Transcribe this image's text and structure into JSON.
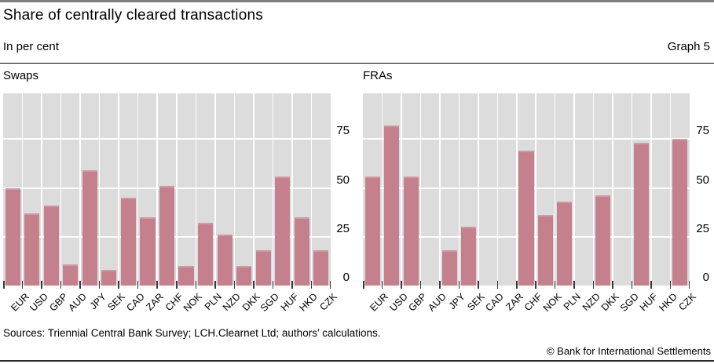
{
  "header": {
    "title": "Share of centrally cleared transactions",
    "subtitle": "In per cent",
    "graph_label": "Graph 5"
  },
  "chart_data": [
    {
      "type": "bar",
      "title": "Swaps",
      "categories": [
        "EUR",
        "USD",
        "GBP",
        "AUD",
        "JPY",
        "SEK",
        "CAD",
        "ZAR",
        "CHF",
        "NOK",
        "PLN",
        "NZD",
        "DKK",
        "SGD",
        "HUF",
        "HKD",
        "CZK"
      ],
      "values": [
        50,
        37,
        41,
        11,
        59,
        8,
        45,
        35,
        51,
        10,
        32,
        26,
        10,
        18,
        56,
        35,
        18
      ],
      "xlabel": "",
      "ylabel": "",
      "yticks": [
        0,
        25,
        50,
        75
      ],
      "ylim": [
        0,
        98
      ],
      "grid": true,
      "legend": "none",
      "bar_color": "#c5808e",
      "bar_top_color": "#cf99a4",
      "plot_bg": "#dcdcdc",
      "grid_color": "#ffffff"
    },
    {
      "type": "bar",
      "title": "FRAs",
      "categories": [
        "EUR",
        "USD",
        "GBP",
        "AUD",
        "JPY",
        "SEK",
        "CAD",
        "ZAR",
        "CHF",
        "NOK",
        "PLN",
        "NZD",
        "DKK",
        "SGD",
        "HUF",
        "HKD",
        "CZK"
      ],
      "values": [
        56,
        82,
        56,
        null,
        18,
        30,
        null,
        null,
        69,
        36,
        43,
        null,
        46,
        null,
        73,
        null,
        75
      ],
      "xlabel": "",
      "ylabel": "",
      "yticks": [
        0,
        25,
        50,
        75
      ],
      "ylim": [
        0,
        98
      ],
      "grid": true,
      "legend": "none",
      "bar_color": "#c5808e",
      "bar_top_color": "#cf99a4",
      "plot_bg": "#dcdcdc",
      "grid_color": "#ffffff"
    }
  ],
  "footer": {
    "sources": "Sources: Triennial Central Bank Survey; LCH.Clearnet Ltd; authors’ calculations.",
    "copyright": "© Bank for International Settlements"
  }
}
